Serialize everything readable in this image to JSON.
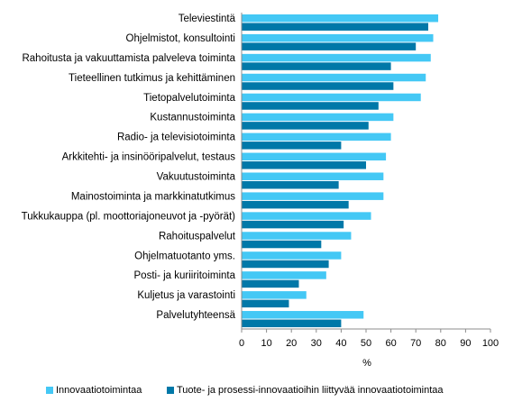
{
  "chart_data": {
    "type": "bar",
    "orientation": "horizontal",
    "categories": [
      "Televiestintä",
      "Ohjelmistot, konsultointi",
      "Rahoitusta ja vakuuttamista palveleva toiminta",
      "Tieteellinen tutkimus ja kehittäminen",
      "Tietopalvelutoiminta",
      "Kustannustoiminta",
      "Radio- ja televisiotoiminta",
      "Arkkitehti- ja insinööripalvelut, testaus",
      "Vakuutustoiminta",
      "Mainostoiminta ja markkinatutkimus",
      "Tukkukauppa (pl. moottoriajoneuvot ja -pyörät)",
      "Rahoituspalvelut",
      "Ohjelmatuotanto yms.",
      "Posti- ja kuriiritoiminta",
      "Kuljetus ja varastointi",
      "Palvelutyhteensä"
    ],
    "series": [
      {
        "name": "Innovaatiotoimintaa",
        "color": "#44c8f5",
        "values": [
          79,
          77,
          76,
          74,
          72,
          61,
          60,
          58,
          57,
          57,
          52,
          44,
          40,
          34,
          26,
          49
        ]
      },
      {
        "name": "Tuote- ja prosessi-innovaatioihin liittyvää innovaatiotoimintaa",
        "color": "#0078a8",
        "values": [
          75,
          70,
          60,
          61,
          55,
          51,
          40,
          50,
          39,
          43,
          41,
          32,
          35,
          23,
          19,
          40
        ]
      }
    ],
    "xlim": [
      0,
      100
    ],
    "xticks": [
      "0",
      "10",
      "20",
      "30",
      "40",
      "50",
      "60",
      "70",
      "80",
      "90",
      "100"
    ],
    "xlabel": "%",
    "grid": false,
    "legend_position": "bottom"
  }
}
